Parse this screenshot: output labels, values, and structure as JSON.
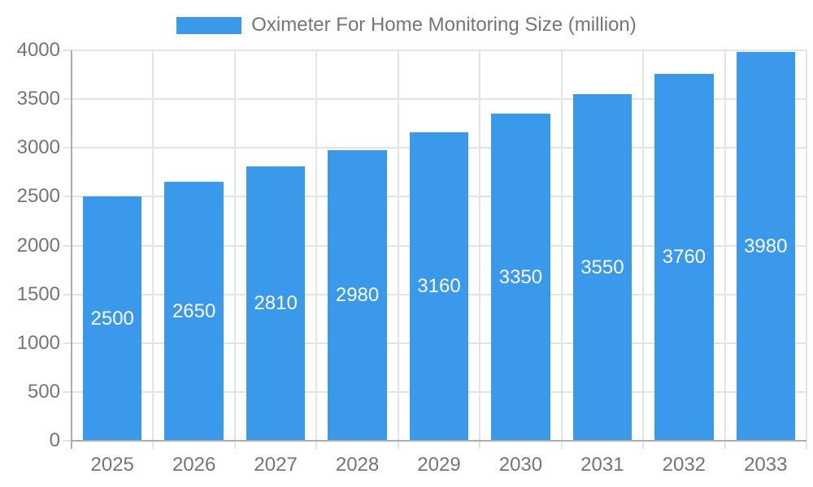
{
  "chart_data": {
    "type": "bar",
    "title": "Oximeter For Home Monitoring Size (million)",
    "categories": [
      "2025",
      "2026",
      "2027",
      "2028",
      "2029",
      "2030",
      "2031",
      "2032",
      "2033"
    ],
    "values": [
      2500,
      2650,
      2810,
      2980,
      3160,
      3350,
      3550,
      3760,
      3980
    ],
    "xlabel": "",
    "ylabel": "",
    "ylim": [
      0,
      4000
    ],
    "yticks": [
      0,
      500,
      1000,
      1500,
      2000,
      2500,
      3000,
      3500,
      4000
    ],
    "grid": true,
    "legend_position": "top-center",
    "bar_labels_visible": true,
    "bar_label_position": "center-inside",
    "colors": {
      "bar": "#3B99EC",
      "bar_label": "#FFFFFF",
      "axis_text": "#757575",
      "grid_line": "#E3E3E3",
      "axis_line": "#ACACAC",
      "background": "#FFFFFF"
    }
  }
}
